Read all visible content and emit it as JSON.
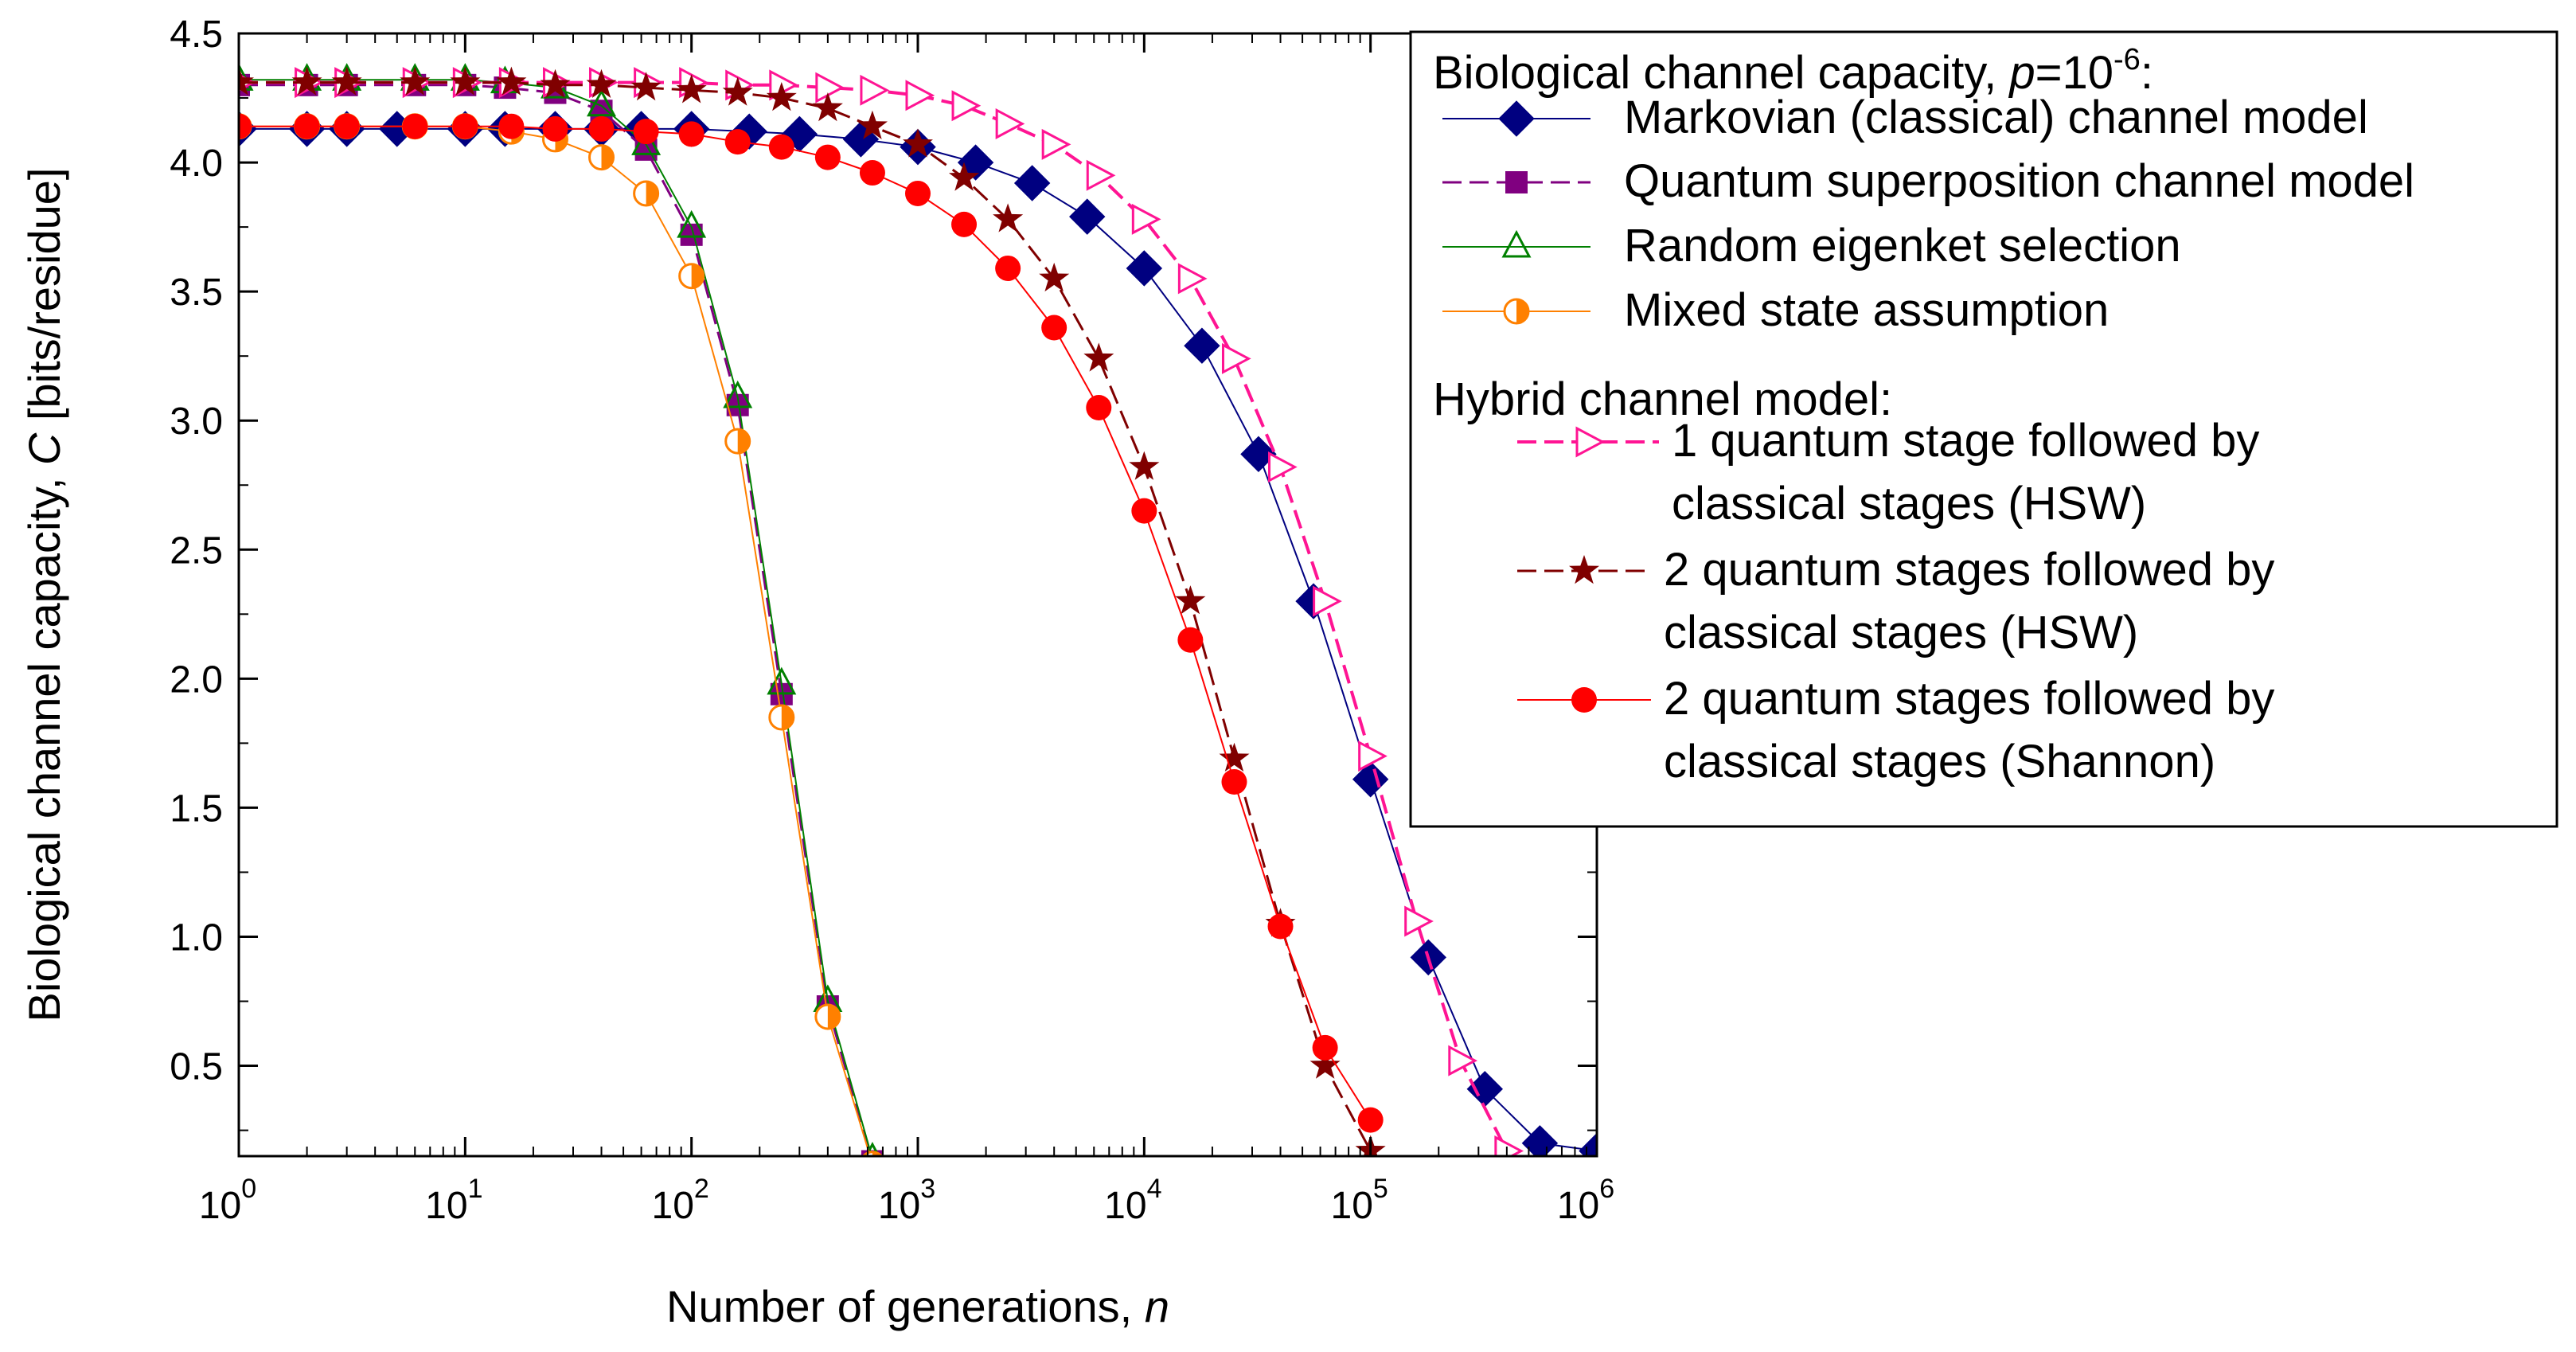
{
  "chart_data": {
    "type": "line",
    "title": "",
    "xlabel": {
      "prefix": "Number of generations, ",
      "symbol": "n"
    },
    "ylabel": {
      "prefix": "Biological channel capacity, ",
      "symbol": "C",
      "suffix": " [bits/residue]"
    },
    "xscale": "log",
    "xlim": [
      1,
      1000000
    ],
    "ylim": [
      0.15,
      4.5
    ],
    "x_ticks": [
      {
        "base": "10",
        "exp": "0",
        "value": 1
      },
      {
        "base": "10",
        "exp": "1",
        "value": 10
      },
      {
        "base": "10",
        "exp": "2",
        "value": 100
      },
      {
        "base": "10",
        "exp": "3",
        "value": 1000
      },
      {
        "base": "10",
        "exp": "4",
        "value": 10000
      },
      {
        "base": "10",
        "exp": "5",
        "value": 100000
      },
      {
        "base": "10",
        "exp": "6",
        "value": 1000000
      }
    ],
    "y_ticks": [
      "0.5",
      "1.0",
      "1.5",
      "2.0",
      "2.5",
      "3.0",
      "3.5",
      "4.0",
      "4.5"
    ],
    "grid": false,
    "legend": {
      "position": "top-right",
      "header1": {
        "text": "Biological channel capacity, ",
        "symbol": "p",
        "eq": "=10",
        "exp": "-6",
        "tail": ":"
      },
      "header2": "Hybrid channel model:"
    },
    "colors": {
      "navy": "#000080",
      "purple": "#800080",
      "green": "#008000",
      "orange": "#FF8000",
      "pink": "#FF1493",
      "maroon": "#800000",
      "red": "#FF0000"
    },
    "series": [
      {
        "name": "Markovian (classical) channel model",
        "legend_lines": [
          "Markovian (classical) channel model"
        ],
        "color": "#000080",
        "marker": "diamond",
        "dash": "solid",
        "width": 2,
        "x": [
          1,
          2,
          3,
          5,
          10,
          15,
          25,
          40,
          60,
          100,
          180,
          300,
          560,
          1000,
          1800,
          3200,
          5600,
          10000,
          18000,
          32000,
          56000,
          100000,
          180000,
          320000,
          560000,
          1000000
        ],
        "y": [
          4.13,
          4.13,
          4.13,
          4.13,
          4.13,
          4.13,
          4.13,
          4.13,
          4.13,
          4.13,
          4.12,
          4.11,
          4.09,
          4.06,
          4.0,
          3.92,
          3.79,
          3.59,
          3.29,
          2.87,
          2.3,
          1.61,
          0.92,
          0.41,
          0.2,
          0.17
        ]
      },
      {
        "name": "Quantum superposition channel model",
        "legend_lines": [
          "Quantum superposition channel model"
        ],
        "color": "#800080",
        "marker": "square",
        "dash": "dash",
        "width": 3,
        "x": [
          1,
          2,
          3,
          6,
          10,
          15,
          25,
          40,
          63,
          100,
          160,
          250,
          400,
          630
        ],
        "y": [
          4.3,
          4.3,
          4.3,
          4.3,
          4.3,
          4.29,
          4.27,
          4.2,
          4.05,
          3.72,
          3.06,
          1.94,
          0.73,
          0.13
        ]
      },
      {
        "name": "Random eigenket selection",
        "legend_lines": [
          "Random eigenket selection"
        ],
        "color": "#008000",
        "marker": "triangle-open",
        "dash": "solid",
        "width": 2,
        "x": [
          1,
          2,
          3,
          6,
          10,
          15,
          25,
          40,
          63,
          100,
          160,
          250,
          400,
          630
        ],
        "y": [
          4.32,
          4.32,
          4.32,
          4.32,
          4.32,
          4.31,
          4.29,
          4.22,
          4.07,
          3.75,
          3.09,
          1.98,
          0.75,
          0.14
        ]
      },
      {
        "name": "Mixed state assumption",
        "legend_lines": [
          "Mixed state assumption"
        ],
        "color": "#FF8000",
        "marker": "circle-half",
        "dash": "solid",
        "width": 2,
        "x": [
          1,
          2,
          3,
          6,
          10,
          16,
          25,
          40,
          63,
          100,
          160,
          250,
          400,
          630
        ],
        "y": [
          4.14,
          4.14,
          4.14,
          4.14,
          4.14,
          4.12,
          4.09,
          4.02,
          3.88,
          3.56,
          2.92,
          1.85,
          0.69,
          0.12
        ]
      },
      {
        "name": "1 quantum stage followed by classical stages (HSW)",
        "legend_lines": [
          "1 quantum stage followed by",
          " classical stages (HSW)"
        ],
        "color": "#FF1493",
        "marker": "triangle-right-open",
        "dash": "dash",
        "width": 4,
        "x": [
          1,
          2,
          3,
          6,
          10,
          16,
          25,
          40,
          63,
          100,
          160,
          250,
          400,
          630,
          1000,
          1600,
          2500,
          4000,
          6300,
          10000,
          16000,
          25000,
          40000,
          63000,
          100000,
          160000,
          250000,
          400000
        ],
        "y": [
          4.31,
          4.31,
          4.31,
          4.31,
          4.31,
          4.31,
          4.31,
          4.31,
          4.31,
          4.31,
          4.3,
          4.3,
          4.29,
          4.28,
          4.26,
          4.22,
          4.15,
          4.07,
          3.95,
          3.78,
          3.55,
          3.24,
          2.82,
          2.3,
          1.7,
          1.06,
          0.52,
          0.17
        ]
      },
      {
        "name": "2 quantum stages followed by classical stages (HSW)",
        "legend_lines": [
          "2 quantum stages followed by",
          "classical stages (HSW)"
        ],
        "color": "#800000",
        "marker": "star",
        "dash": "dash",
        "width": 3,
        "x": [
          1,
          2,
          3,
          6,
          10,
          16,
          25,
          40,
          63,
          100,
          160,
          250,
          400,
          630,
          1000,
          1600,
          2500,
          4000,
          6300,
          10000,
          16000,
          25000,
          40000,
          63000,
          100000
        ],
        "y": [
          4.31,
          4.31,
          4.31,
          4.31,
          4.31,
          4.31,
          4.3,
          4.3,
          4.29,
          4.28,
          4.27,
          4.25,
          4.21,
          4.14,
          4.07,
          3.94,
          3.78,
          3.55,
          3.24,
          2.82,
          2.3,
          1.69,
          1.05,
          0.5,
          0.17
        ]
      },
      {
        "name": "2 quantum stages followed by classical stages (Shannon)",
        "legend_lines": [
          "2 quantum stages followed by",
          "classical stages (Shannon)"
        ],
        "color": "#FF0000",
        "marker": "circle",
        "dash": "solid",
        "width": 2,
        "x": [
          1,
          2,
          3,
          6,
          10,
          16,
          25,
          40,
          63,
          100,
          160,
          250,
          400,
          630,
          1000,
          1600,
          2500,
          4000,
          6300,
          10000,
          16000,
          25000,
          40000,
          63000,
          100000
        ],
        "y": [
          4.14,
          4.14,
          4.14,
          4.14,
          4.14,
          4.14,
          4.13,
          4.13,
          4.12,
          4.11,
          4.08,
          4.06,
          4.02,
          3.96,
          3.88,
          3.76,
          3.59,
          3.36,
          3.05,
          2.65,
          2.15,
          1.6,
          1.04,
          0.57,
          0.29
        ]
      }
    ]
  }
}
